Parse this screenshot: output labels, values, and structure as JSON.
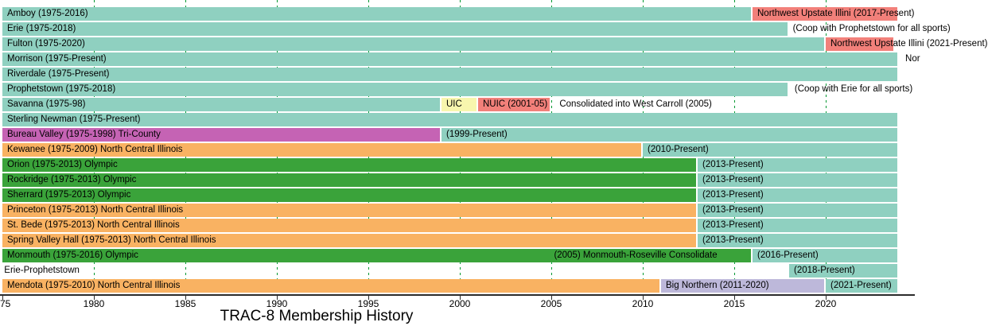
{
  "colors": {
    "teal": "#8fd0c0",
    "red": "#f2807a",
    "yellow": "#f8f6ae",
    "magenta": "#c563b4",
    "orange": "#f9b262",
    "green": "#3aa33a",
    "purple": "#bdb8da",
    "grid": "#009933",
    "axis": "#2b2b2b",
    "text": "#000000"
  },
  "chart_data": {
    "type": "bar",
    "subtype": "horizontal-timeline-gantt",
    "title": "TRAC-8 Membership History",
    "xlim": [
      1975,
      2025
    ],
    "present_year": 2024,
    "grid": "dashed-vertical-green",
    "legend_position": "none",
    "x_ticks": [
      {
        "year": 1975,
        "label": "75",
        "align": "left"
      },
      {
        "year": 1980,
        "label": "1980"
      },
      {
        "year": 1985,
        "label": "1985"
      },
      {
        "year": 1990,
        "label": "1990"
      },
      {
        "year": 1995,
        "label": "1995"
      },
      {
        "year": 2000,
        "label": "2000"
      },
      {
        "year": 2005,
        "label": "2005"
      },
      {
        "year": 2010,
        "label": "2010"
      },
      {
        "year": 2015,
        "label": "2015"
      },
      {
        "year": 2020,
        "label": "2020"
      }
    ],
    "grid_years": [
      1980,
      1985,
      1990,
      1995,
      2000,
      2005,
      2010,
      2015,
      2020
    ],
    "rows": [
      {
        "school": "Amboy",
        "segments": [
          {
            "from": 1975,
            "to": 2016,
            "color": "teal",
            "label": "Amboy (1975-2016)"
          },
          {
            "from": 2016,
            "to": 2024,
            "color": "red",
            "label": "Northwest Upstate Illini (2017-Present)"
          }
        ]
      },
      {
        "school": "Erie",
        "segments": [
          {
            "from": 1975,
            "to": 2018,
            "color": "teal",
            "label": "Erie (1975-2018)"
          }
        ],
        "annotations": [
          {
            "year": 2018.2,
            "text": "(Coop with Prophetstown for all sports)"
          }
        ]
      },
      {
        "school": "Fulton",
        "segments": [
          {
            "from": 1975,
            "to": 2020,
            "color": "teal",
            "label": "Fulton (1975-2020)"
          },
          {
            "from": 2020,
            "to": 2023.8,
            "color": "red",
            "label": "Northwest Upstate Illini (2021-Present)"
          }
        ]
      },
      {
        "school": "Morrison",
        "segments": [
          {
            "from": 1975,
            "to": 2024,
            "color": "teal",
            "label": "Morrison (1975-Present)"
          }
        ],
        "annotations": [
          {
            "year": 2024.35,
            "text": "Nor"
          }
        ]
      },
      {
        "school": "Riverdale",
        "segments": [
          {
            "from": 1975,
            "to": 2024,
            "color": "teal",
            "label": "Riverdale (1975-Present)"
          }
        ]
      },
      {
        "school": "Prophetstown",
        "segments": [
          {
            "from": 1975,
            "to": 2018,
            "color": "teal",
            "label": "Prophetstown (1975-2018)"
          }
        ],
        "annotations": [
          {
            "year": 2018.3,
            "text": "(Coop with Erie for all sports)"
          }
        ]
      },
      {
        "school": "Savanna",
        "segments": [
          {
            "from": 1975,
            "to": 1999,
            "color": "teal",
            "label": "Savanna (1975-98)"
          },
          {
            "from": 1999,
            "to": 2001,
            "color": "yellow",
            "label": "UIC"
          },
          {
            "from": 2001,
            "to": 2005,
            "color": "red",
            "label": "NUIC (2001-05)"
          }
        ],
        "annotations": [
          {
            "year": 2005.45,
            "text": "Consolidated into West Carroll (2005)"
          }
        ]
      },
      {
        "school": "Sterling Newman",
        "segments": [
          {
            "from": 1975,
            "to": 2024,
            "color": "teal",
            "label": "Sterling Newman (1975-Present)"
          }
        ]
      },
      {
        "school": "Bureau Valley",
        "segments": [
          {
            "from": 1975,
            "to": 1999,
            "color": "magenta",
            "label": "Bureau Valley (1975-1998) Tri-County"
          },
          {
            "from": 1999,
            "to": 2024,
            "color": "teal",
            "label": "(1999-Present)"
          }
        ]
      },
      {
        "school": "Kewanee",
        "segments": [
          {
            "from": 1975,
            "to": 2010,
            "color": "orange",
            "label": "Kewanee (1975-2009) North Central Illinois"
          },
          {
            "from": 2010,
            "to": 2024,
            "color": "teal",
            "label": "(2010-Present)"
          }
        ]
      },
      {
        "school": "Orion",
        "segments": [
          {
            "from": 1975,
            "to": 2013,
            "color": "green",
            "label": "Orion (1975-2013) Olympic"
          },
          {
            "from": 2013,
            "to": 2024,
            "color": "teal",
            "label": "(2013-Present)"
          }
        ]
      },
      {
        "school": "Rockridge",
        "segments": [
          {
            "from": 1975,
            "to": 2013,
            "color": "green",
            "label": "Rockridge (1975-2013) Olympic"
          },
          {
            "from": 2013,
            "to": 2024,
            "color": "teal",
            "label": "(2013-Present)"
          }
        ]
      },
      {
        "school": "Sherrard",
        "segments": [
          {
            "from": 1975,
            "to": 2013,
            "color": "green",
            "label": "Sherrard (1975-2013) Olympic"
          },
          {
            "from": 2013,
            "to": 2024,
            "color": "teal",
            "label": "(2013-Present)"
          }
        ]
      },
      {
        "school": "Princeton",
        "segments": [
          {
            "from": 1975,
            "to": 2013,
            "color": "orange",
            "label": "Princeton (1975-2013) North Central Illinois"
          },
          {
            "from": 2013,
            "to": 2024,
            "color": "teal",
            "label": "(2013-Present)"
          }
        ]
      },
      {
        "school": "St. Bede",
        "segments": [
          {
            "from": 1975,
            "to": 2013,
            "color": "orange",
            "label": "St. Bede (1975-2013) North Central Illinois"
          },
          {
            "from": 2013,
            "to": 2024,
            "color": "teal",
            "label": "(2013-Present)"
          }
        ]
      },
      {
        "school": "Spring Valley Hall",
        "segments": [
          {
            "from": 1975,
            "to": 2013,
            "color": "orange",
            "label": "Spring Valley Hall (1975-2013) North Central Illinois"
          },
          {
            "from": 2013,
            "to": 2024,
            "color": "teal",
            "label": "(2013-Present)"
          }
        ]
      },
      {
        "school": "Monmouth",
        "segments": [
          {
            "from": 1975,
            "to": 2016,
            "color": "green",
            "label": "Monmouth (1975-2016) Olympic"
          },
          {
            "from": 2016,
            "to": 2024,
            "color": "teal",
            "label": "(2016-Present)"
          }
        ],
        "annotations": [
          {
            "year": 2005.15,
            "text": "(2005) Monmouth-Roseville Consolidate"
          }
        ]
      },
      {
        "school": "Erie-Prophetstown",
        "segments": [
          {
            "from": 2018,
            "to": 2024,
            "color": "teal",
            "label": "(2018-Present)"
          }
        ],
        "annotations": [
          {
            "year": 1975.1,
            "text": "Erie-Prophetstown"
          }
        ]
      },
      {
        "school": "Mendota",
        "segments": [
          {
            "from": 1975,
            "to": 2011,
            "color": "orange",
            "label": "Mendota (1975-2010) North Central Illinois"
          },
          {
            "from": 2011,
            "to": 2020,
            "color": "purple",
            "label": "Big Northern (2011-2020)"
          },
          {
            "from": 2020,
            "to": 2024,
            "color": "teal",
            "label": "(2021-Present)"
          }
        ]
      }
    ]
  }
}
